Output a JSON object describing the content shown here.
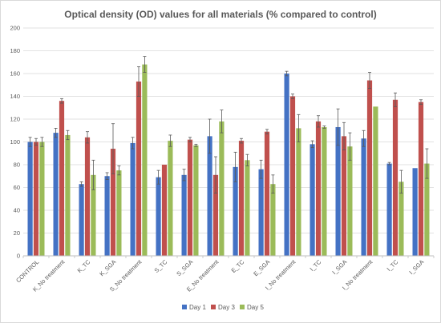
{
  "chart_data": {
    "type": "bar",
    "title": "Optical density (OD) values for all materials (% compared to control)",
    "xlabel": "",
    "ylabel": "",
    "ylim": [
      0,
      200
    ],
    "yticks": [
      0,
      20,
      40,
      60,
      80,
      100,
      120,
      140,
      160,
      180,
      200
    ],
    "grid": true,
    "legend_position": "bottom",
    "categories": [
      "CONTROL",
      "K_No treatment",
      "K_TC",
      "K_SGA",
      "S_No treatment",
      "S_TC",
      "S_SGA",
      "E_No treatment",
      "E_TC",
      "E_SGA",
      "I_No treatment",
      "I_TC",
      "I_SGA",
      "I_No treatment",
      "I_TC",
      "I_SGA"
    ],
    "series": [
      {
        "name": "Day 1",
        "color": "#4472c4",
        "values": [
          100,
          108,
          63,
          70,
          99,
          69,
          71,
          105,
          78,
          76,
          160,
          98,
          113,
          103,
          81,
          77
        ],
        "errors": [
          4,
          4,
          2,
          3,
          5,
          6,
          5,
          15,
          13,
          8,
          2,
          3,
          16,
          7,
          1,
          0
        ]
      },
      {
        "name": "Day 3",
        "color": "#c0504d",
        "values": [
          100,
          136,
          104,
          94,
          153,
          80,
          102,
          71,
          101,
          109,
          140,
          118,
          105,
          154,
          137,
          135
        ],
        "errors": [
          3,
          2,
          5,
          22,
          13,
          0,
          2,
          16,
          2,
          2,
          2,
          5,
          12,
          7,
          6,
          2
        ]
      },
      {
        "name": "Day 5",
        "color": "#9bbb59",
        "values": [
          100,
          106,
          71,
          75,
          168,
          101,
          97,
          118,
          84,
          63,
          112,
          113,
          96,
          131,
          65,
          81
        ],
        "errors": [
          4,
          4,
          13,
          4,
          7,
          5,
          1,
          10,
          5,
          8,
          12,
          1,
          12,
          0,
          10,
          13
        ]
      }
    ]
  }
}
